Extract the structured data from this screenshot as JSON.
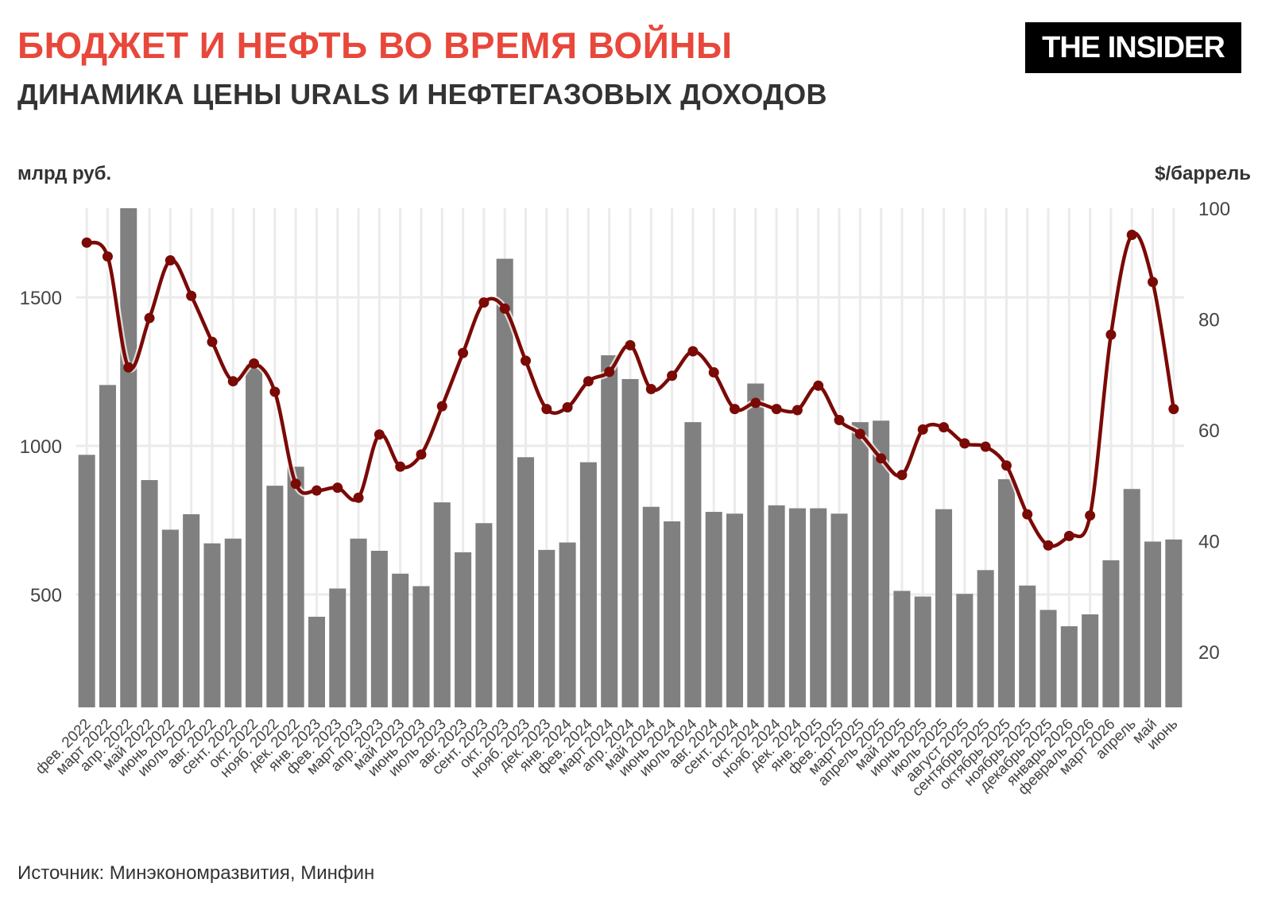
{
  "header": {
    "title": "БЮДЖЕТ И НЕФТЬ ВО ВРЕМЯ ВОЙНЫ",
    "subtitle": "ДИНАМИКА ЦЕНЫ URALS И НЕФТЕГАЗОВЫХ ДОХОДОВ",
    "logo_text": "THE INSIDER"
  },
  "footer": {
    "source": "Источник: Минэкономразвития, Минфин"
  },
  "colors": {
    "title": "#e8473b",
    "bars": "#808080",
    "line": "#7a0a06",
    "grid": "#ebebeb"
  },
  "chart_data": {
    "type": "bar+line",
    "left_axis_label": "млрд руб.",
    "right_axis_label": "$/баррель",
    "left_ticks": [
      500,
      1000,
      1500
    ],
    "right_ticks": [
      20,
      40,
      60,
      80,
      100
    ],
    "left_ylim": [
      120,
      1800
    ],
    "right_ylim": [
      10,
      100
    ],
    "grid": true,
    "categories": [
      "фев. 2022",
      "март 2022",
      "апр. 2022",
      "май 2022",
      "июнь 2022",
      "июль 2022",
      "авг. 2022",
      "сент. 2022",
      "окт. 2022",
      "нояб. 2022",
      "дек. 2022",
      "янв. 2023",
      "фев. 2023",
      "март 2023",
      "апр. 2023",
      "май 2023",
      "июнь 2023",
      "июль 2023",
      "авг. 2023",
      "сент. 2023",
      "окт. 2023",
      "нояб. 2023",
      "дек. 2023",
      "янв. 2024",
      "фев. 2024",
      "март 2024",
      "апр. 2024",
      "май 2024",
      "июнь 2024",
      "июль 2024",
      "авг. 2024",
      "сент. 2024",
      "окт. 2024",
      "нояб. 2024",
      "дек. 2024",
      "янв. 2025",
      "фев. 2025",
      "март 2025",
      "апрель 2025",
      "май 2025",
      "июнь 2025",
      "июль 2025",
      "август 2025",
      "сентябрь 2025",
      "октябрь 2025",
      "ноябрь 2025",
      "декабрь 2025",
      "январь 2026",
      "февраль 2026",
      "март 2026",
      "апрель",
      "май",
      "июнь"
    ],
    "series": [
      {
        "name": "млрд руб.",
        "type": "bar",
        "values": [
          970,
          1205,
          1800,
          885,
          718,
          770,
          672,
          688,
          1275,
          866,
          930,
          425,
          520,
          688,
          647,
          570,
          528,
          810,
          642,
          740,
          1630,
          962,
          650,
          675,
          945,
          1305,
          1225,
          795,
          746,
          1080,
          778,
          772,
          1210,
          800,
          790,
          790,
          772,
          1080,
          1085,
          512,
          493,
          787,
          502,
          582,
          888,
          530,
          448,
          393,
          433,
          615,
          855,
          678,
          685
        ]
      },
      {
        "name": "$/баррель",
        "type": "line",
        "values": [
          93.8,
          91.3,
          71.3,
          80.2,
          90.6,
          84.2,
          75.9,
          68.8,
          72.0,
          66.9,
          50.3,
          49.1,
          49.6,
          47.8,
          59.2,
          53.4,
          55.6,
          64.3,
          73.9,
          83.0,
          81.9,
          72.5,
          63.8,
          64.1,
          68.8,
          70.5,
          75.3,
          67.4,
          69.8,
          74.2,
          70.4,
          63.8,
          64.9,
          63.8,
          63.6,
          68.0,
          61.8,
          59.3,
          54.9,
          51.9,
          60.1,
          60.5,
          57.6,
          57.0,
          53.6,
          44.8,
          39.2,
          40.9,
          44.6,
          77.2,
          95.2,
          86.7,
          63.8
        ]
      }
    ]
  }
}
